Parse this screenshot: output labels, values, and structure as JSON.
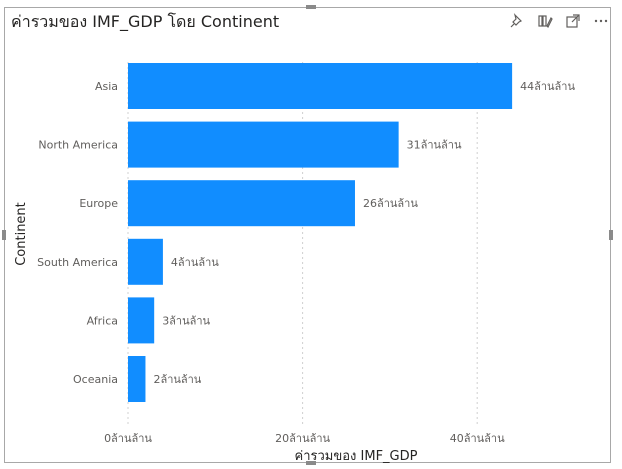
{
  "visual": {
    "title": "ค่ารวมของ IMF_GDP โดย Continent",
    "toolbar": [
      {
        "icon": "pin-icon"
      },
      {
        "icon": "copy-visual-icon"
      },
      {
        "icon": "focus-mode-icon"
      },
      {
        "icon": "more-options-icon"
      }
    ]
  },
  "chart_data": {
    "type": "bar",
    "orientation": "horizontal",
    "categories": [
      "Asia",
      "North America",
      "Europe",
      "South America",
      "Africa",
      "Oceania"
    ],
    "values": [
      44,
      31,
      26,
      4,
      3,
      2
    ],
    "value_labels": [
      "44ล้านล้าน",
      "31ล้านล้าน",
      "26ล้านล้าน",
      "4ล้านล้าน",
      "3ล้านล้าน",
      "2ล้านล้าน"
    ],
    "xlabel": "ค่ารวมของ IMF_GDP",
    "ylabel": "Continent",
    "xlim": [
      0,
      50
    ],
    "x_ticks": [
      {
        "value": 0,
        "label": "0ล้านล้าน"
      },
      {
        "value": 20,
        "label": "20ล้านล้าน"
      },
      {
        "value": 40,
        "label": "40ล้านล้าน"
      }
    ],
    "grid": "vertical dashed",
    "bar_color": "#118DFF"
  }
}
